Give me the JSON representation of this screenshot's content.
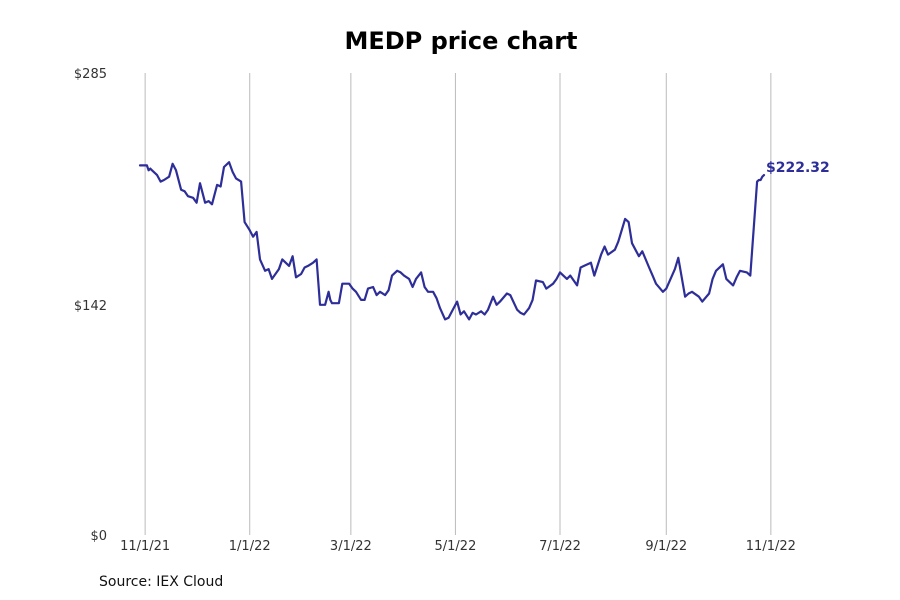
{
  "chart_data": {
    "type": "line",
    "title": "MEDP price chart",
    "xlabel": "",
    "ylabel": "",
    "x_range": [
      "2021-10-29",
      "2022-11-18"
    ],
    "ylim": [
      0,
      285
    ],
    "y_ticks": [
      {
        "value": 0,
        "label": "$0"
      },
      {
        "value": 142,
        "label": "$142"
      },
      {
        "value": 285,
        "label": "$285"
      }
    ],
    "x_ticks": [
      {
        "date": "2021-11-01",
        "label": "11/1/21"
      },
      {
        "date": "2022-01-01",
        "label": "1/1/22"
      },
      {
        "date": "2022-03-01",
        "label": "3/1/22"
      },
      {
        "date": "2022-05-01",
        "label": "5/1/22"
      },
      {
        "date": "2022-07-01",
        "label": "7/1/22"
      },
      {
        "date": "2022-09-01",
        "label": "9/1/22"
      },
      {
        "date": "2022-11-01",
        "label": "11/1/22"
      }
    ],
    "grid": {
      "vertical": true,
      "horizontal": false
    },
    "line_color": "#2e2e99",
    "grid_color": "#bbbbbb",
    "last_value_label": "$222.32",
    "series": [
      {
        "x": [
          "2021-10-29",
          "2021-11-02",
          "2021-11-03",
          "2021-11-04",
          "2021-11-05",
          "2021-11-08",
          "2021-11-10",
          "2021-11-12",
          "2021-11-15",
          "2021-11-17",
          "2021-11-19",
          "2021-11-22",
          "2021-11-24",
          "2021-11-26",
          "2021-11-29",
          "2021-12-01",
          "2021-12-03",
          "2021-12-06",
          "2021-12-08",
          "2021-12-10",
          "2021-12-13",
          "2021-12-15",
          "2021-12-17",
          "2021-12-20",
          "2021-12-22",
          "2021-12-24",
          "2021-12-27",
          "2021-12-29",
          "2022-01-01",
          "2022-01-03",
          "2022-01-05",
          "2022-01-07",
          "2022-01-10",
          "2022-01-12",
          "2022-01-14",
          "2022-01-18",
          "2022-01-20",
          "2022-01-24",
          "2022-01-26",
          "2022-01-28",
          "2022-01-31",
          "2022-02-02",
          "2022-02-04",
          "2022-02-07",
          "2022-02-09",
          "2022-02-11",
          "2022-02-14",
          "2022-02-16",
          "2022-02-17",
          "2022-02-18",
          "2022-02-22",
          "2022-02-24",
          "2022-02-28",
          "2022-03-02",
          "2022-03-04",
          "2022-03-07",
          "2022-03-09",
          "2022-03-11",
          "2022-03-14",
          "2022-03-16",
          "2022-03-18",
          "2022-03-21",
          "2022-03-23",
          "2022-03-25",
          "2022-03-28",
          "2022-03-30",
          "2022-04-01",
          "2022-04-04",
          "2022-04-06",
          "2022-04-08",
          "2022-04-11",
          "2022-04-13",
          "2022-04-15",
          "2022-04-18",
          "2022-04-20",
          "2022-04-22",
          "2022-04-25",
          "2022-04-27",
          "2022-04-29",
          "2022-05-02",
          "2022-05-04",
          "2022-05-06",
          "2022-05-09",
          "2022-05-11",
          "2022-05-13",
          "2022-05-16",
          "2022-05-18",
          "2022-05-20",
          "2022-05-23",
          "2022-05-25",
          "2022-05-27",
          "2022-05-31",
          "2022-06-02",
          "2022-06-06",
          "2022-06-08",
          "2022-06-10",
          "2022-06-13",
          "2022-06-15",
          "2022-06-17",
          "2022-06-21",
          "2022-06-23",
          "2022-06-27",
          "2022-06-29",
          "2022-07-01",
          "2022-07-05",
          "2022-07-07",
          "2022-07-11",
          "2022-07-13",
          "2022-07-15",
          "2022-07-19",
          "2022-07-21",
          "2022-07-25",
          "2022-07-27",
          "2022-07-29",
          "2022-08-02",
          "2022-08-04",
          "2022-08-08",
          "2022-08-10",
          "2022-08-12",
          "2022-08-16",
          "2022-08-18",
          "2022-08-22",
          "2022-08-24",
          "2022-08-26",
          "2022-08-30",
          "2022-09-01",
          "2022-09-06",
          "2022-09-08",
          "2022-09-12",
          "2022-09-14",
          "2022-09-16",
          "2022-09-20",
          "2022-09-22",
          "2022-09-26",
          "2022-09-28",
          "2022-09-30",
          "2022-10-04",
          "2022-10-06",
          "2022-10-10",
          "2022-10-12",
          "2022-10-14",
          "2022-10-18",
          "2022-10-20",
          "2022-10-24",
          "2022-10-25",
          "2022-10-26",
          "2022-10-27",
          "2022-10-28"
        ],
        "y": [
          228,
          228,
          225,
          226,
          225,
          222,
          218,
          219,
          221,
          229,
          225,
          213,
          212,
          209,
          208,
          205,
          217,
          205,
          206,
          204,
          216,
          215,
          227,
          230,
          224,
          220,
          218,
          193,
          188,
          184,
          187,
          170,
          163,
          164,
          158,
          164,
          170,
          166,
          172,
          159,
          161,
          165,
          166,
          168,
          170,
          142,
          142,
          150,
          145,
          143,
          143,
          155,
          155,
          152,
          150,
          145,
          145,
          152,
          153,
          148,
          150,
          148,
          151,
          160,
          163,
          162,
          160,
          158,
          153,
          158,
          162,
          153,
          150,
          150,
          146,
          140,
          133,
          134,
          138,
          144,
          136,
          138,
          133,
          137,
          136,
          138,
          136,
          139,
          147,
          142,
          144,
          149,
          148,
          139,
          137,
          136,
          140,
          145,
          157,
          156,
          152,
          155,
          158,
          162,
          158,
          160,
          154,
          165,
          166,
          168,
          160,
          173,
          178,
          173,
          176,
          181,
          195,
          193,
          180,
          172,
          175,
          165,
          160,
          155,
          150,
          152,
          164,
          171,
          147,
          149,
          150,
          147,
          144,
          149,
          158,
          163,
          167,
          158,
          154,
          159,
          163,
          162,
          160,
          218,
          219,
          219,
          221,
          222
        ]
      }
    ]
  },
  "source_text": "Source: IEX Cloud"
}
